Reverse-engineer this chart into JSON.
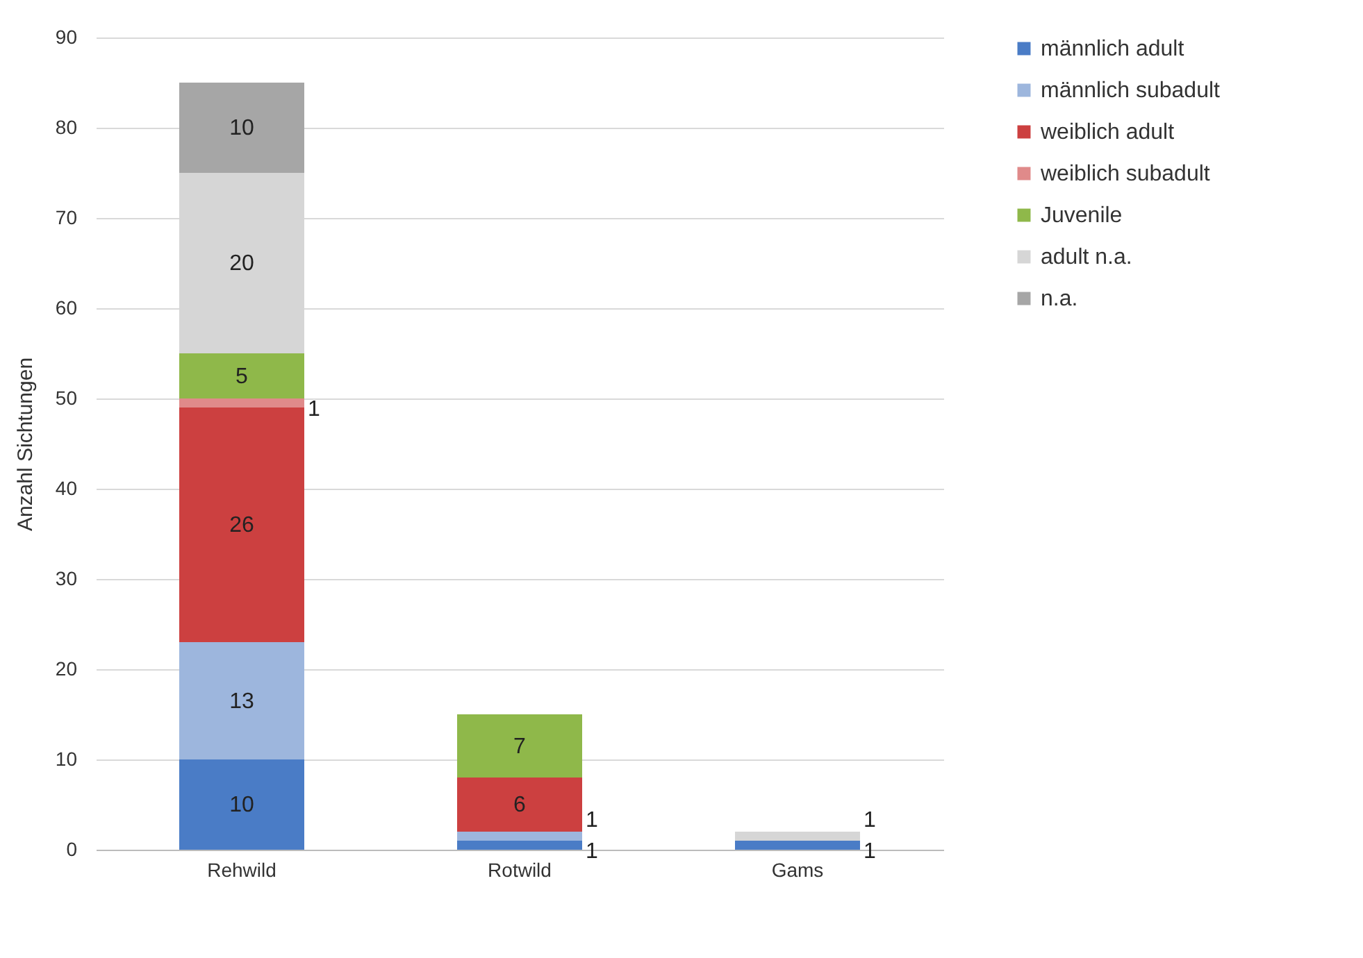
{
  "chart_data": {
    "type": "bar",
    "stacked": true,
    "ylabel": "Anzahl Sichtungen",
    "categories": [
      "Rehwild",
      "Rotwild",
      "Gams"
    ],
    "series": [
      {
        "name": "männlich adult",
        "color": "#4a7cc6",
        "values": [
          10,
          1,
          1
        ]
      },
      {
        "name": "männlich subadult",
        "color": "#9db6dd",
        "values": [
          13,
          1,
          null
        ]
      },
      {
        "name": "weiblich adult",
        "color": "#cc4040",
        "values": [
          26,
          6,
          null
        ]
      },
      {
        "name": "weiblich subadult",
        "color": "#e08a8a",
        "values": [
          1,
          null,
          null
        ]
      },
      {
        "name": "Juvenile",
        "color": "#8fb84a",
        "values": [
          5,
          7,
          null
        ]
      },
      {
        "name": "adult n.a.",
        "color": "#d6d6d6",
        "values": [
          20,
          null,
          1
        ]
      },
      {
        "name": "n.a.",
        "color": "#a6a6a6",
        "values": [
          10,
          null,
          null
        ]
      }
    ],
    "ylim": [
      0,
      90
    ],
    "yticks": [
      0,
      10,
      20,
      30,
      40,
      50,
      60,
      70,
      80,
      90
    ],
    "grid": "y",
    "legend": "right",
    "data_labels": true
  }
}
